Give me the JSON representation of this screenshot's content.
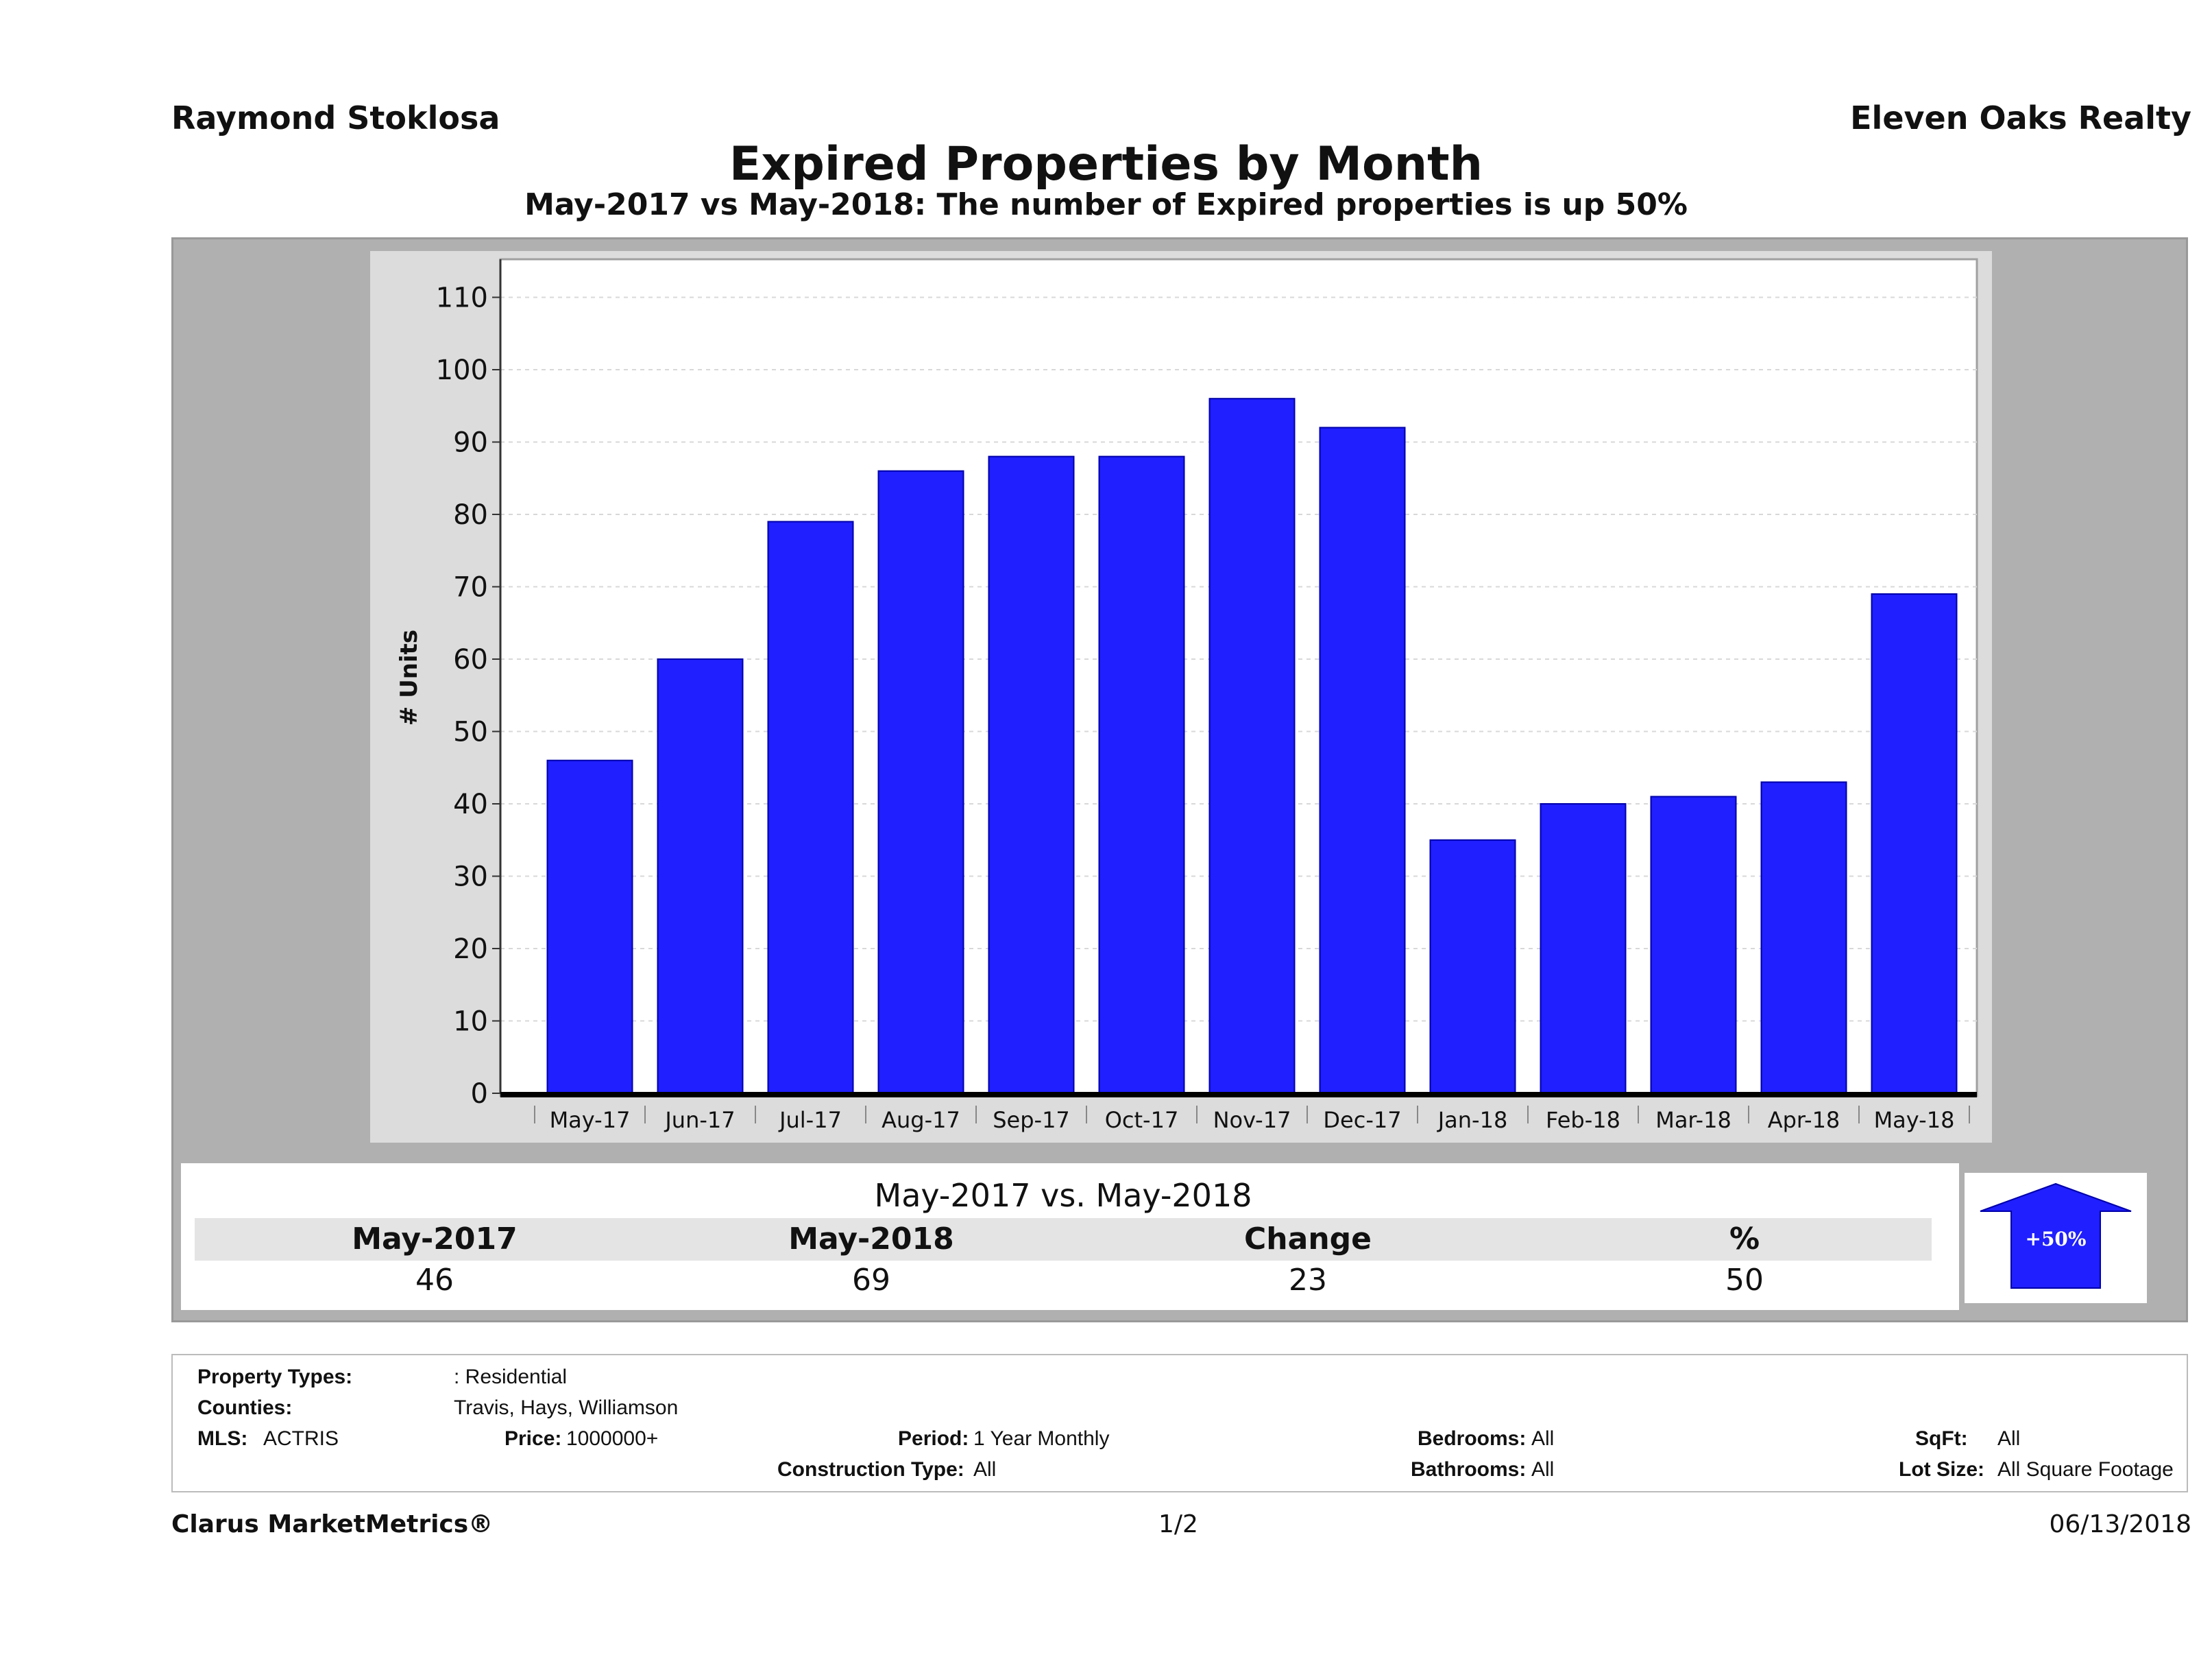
{
  "header": {
    "agent": "Raymond Stoklosa",
    "company": "Eleven Oaks Realty",
    "title": "Expired Properties by Month",
    "subtitle": "May-2017 vs May-2018: The number of Expired  properties is up 50%"
  },
  "chart_data": {
    "type": "bar",
    "categories": [
      "May-17",
      "Jun-17",
      "Jul-17",
      "Aug-17",
      "Sep-17",
      "Oct-17",
      "Nov-17",
      "Dec-17",
      "Jan-18",
      "Feb-18",
      "Mar-18",
      "Apr-18",
      "May-18"
    ],
    "values": [
      46,
      60,
      79,
      86,
      88,
      88,
      96,
      92,
      35,
      40,
      41,
      43,
      69
    ],
    "ylabel": "# Units",
    "ylim": [
      0,
      115
    ],
    "yticks": [
      0,
      10,
      20,
      30,
      40,
      50,
      60,
      70,
      80,
      90,
      100,
      110
    ],
    "bar_color": "#1f1fff",
    "grid": true
  },
  "comparison": {
    "title": "May-2017 vs. May-2018",
    "headers": [
      "May-2017",
      "May-2018",
      "Change",
      "%"
    ],
    "values": [
      "46",
      "69",
      "23",
      "50"
    ],
    "badge": "+50%",
    "badge_direction": "up-arrow",
    "badge_color": "#1f1fff"
  },
  "filters": {
    "property_types_label": "Property Types:",
    "property_types_value": ": Residential",
    "counties_label": "Counties:",
    "counties_value": "Travis, Hays, Williamson",
    "mls_label": "MLS:",
    "mls_value": "ACTRIS",
    "price_label": "Price:",
    "price_value": "1000000+",
    "period_label": "Period:",
    "period_value": "1 Year Monthly",
    "construction_label": "Construction Type:",
    "construction_value": "All",
    "bedrooms_label": "Bedrooms:",
    "bedrooms_value": "All",
    "bathrooms_label": "Bathrooms:",
    "bathrooms_value": "All",
    "sqft_label": "SqFt:",
    "sqft_value": "All",
    "lotsize_label": "Lot Size:",
    "lotsize_value": "All Square Footage"
  },
  "footer": {
    "brand": "Clarus MarketMetrics®",
    "page": "1/2",
    "date": "06/13/2018"
  }
}
